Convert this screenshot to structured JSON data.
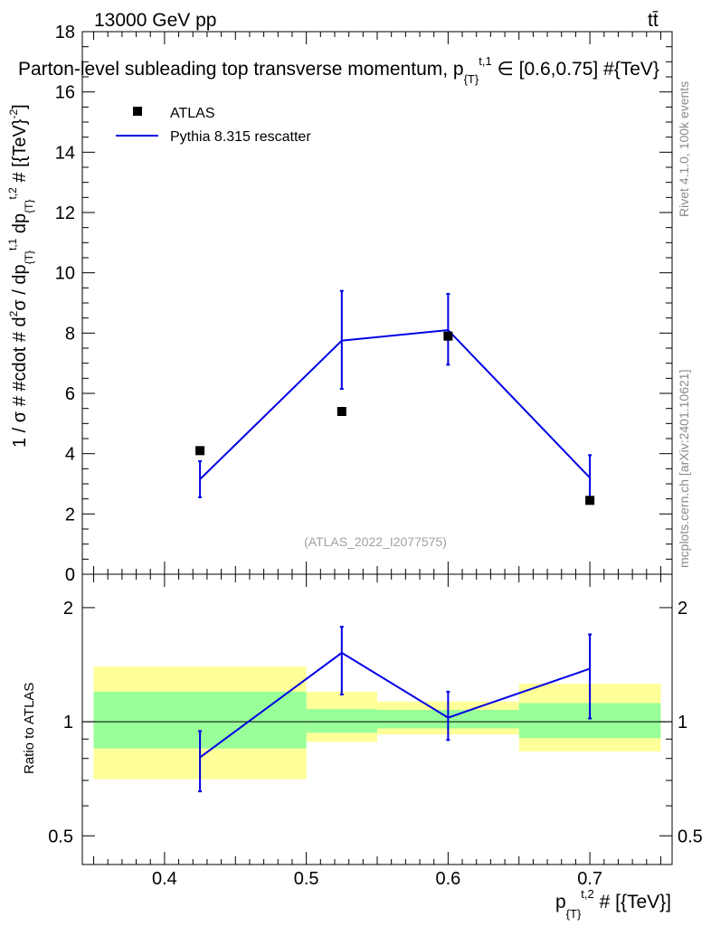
{
  "header": {
    "energy": "13000 GeV pp",
    "process": "tt̄",
    "title": "Parton-level subleading top transverse momentum, p_{T}^{t,1} ∈ [0.6,0.75] #{TeV}",
    "ylabel": "1 / σ # #cdot # d²σ / dp_{T}^{t,1} dp_{T}^{t,2} # [{TeV}^{-2}]",
    "xlabel": "p_{T}^{t,2} # [{TeV}]",
    "ratio_ylabel": "Ratio to ATLAS",
    "analysis_id": "(ATLAS_2022_I2077575)",
    "side_rivet": "Rivet 4.1.0,  100k events",
    "side_mcplots": "mcplots.cern.ch [arXiv:2401.10621]"
  },
  "legend": {
    "atlas": "ATLAS",
    "pythia": "Pythia 8.315 rescatter"
  },
  "colors": {
    "pythia": "#0000e6",
    "band_outer": "#ffff99",
    "band_inner": "#99ff99",
    "data": "#000000"
  },
  "chart_data": [
    {
      "type": "scatter",
      "panel": "main",
      "xlim": [
        0.342,
        0.758
      ],
      "ylim": [
        0,
        18
      ],
      "yticks": [
        0,
        2,
        4,
        6,
        8,
        10,
        12,
        14,
        16,
        18
      ],
      "ytick_labels": [
        "0",
        "2",
        "4",
        "6",
        "8",
        "10",
        "12",
        "14",
        "16",
        "18"
      ],
      "series": [
        {
          "name": "ATLAS",
          "x": [
            0.425,
            0.525,
            0.6,
            0.7
          ],
          "values": [
            4.1,
            5.4,
            7.9,
            2.45
          ]
        },
        {
          "name": "Pythia 8.315 rescatter",
          "x": [
            0.425,
            0.525,
            0.6,
            0.7
          ],
          "values": [
            3.15,
            7.75,
            8.1,
            3.2
          ],
          "err_low": [
            2.55,
            6.15,
            6.95,
            2.5
          ],
          "err_high": [
            3.75,
            9.4,
            9.3,
            3.95
          ]
        }
      ]
    },
    {
      "type": "line",
      "panel": "ratio",
      "ylabel": "Ratio to ATLAS",
      "ylim": [
        0.42,
        2.45
      ],
      "yscale": "log",
      "yticks": [
        0.5,
        1,
        2
      ],
      "ytick_labels": [
        "0.5",
        "1",
        "2"
      ],
      "xticks": [
        0.4,
        0.5,
        0.6,
        0.7
      ],
      "xtick_labels": [
        "0.4",
        "0.5",
        "0.6",
        "0.7"
      ],
      "bins": [
        [
          0.35,
          0.5
        ],
        [
          0.5,
          0.55
        ],
        [
          0.55,
          0.65
        ],
        [
          0.65,
          0.75
        ]
      ],
      "band_outer": [
        [
          0.705,
          1.4
        ],
        [
          0.885,
          1.2
        ],
        [
          0.925,
          1.13
        ],
        [
          0.835,
          1.26
        ]
      ],
      "band_inner": [
        [
          0.85,
          1.2
        ],
        [
          0.935,
          1.08
        ],
        [
          0.96,
          1.075
        ],
        [
          0.905,
          1.12
        ]
      ],
      "series": [
        {
          "name": "Pythia 8.315 rescatter",
          "x": [
            0.425,
            0.525,
            0.6,
            0.7
          ],
          "values": [
            0.805,
            1.52,
            1.025,
            1.38
          ],
          "err_low": [
            0.655,
            1.18,
            0.895,
            1.02
          ],
          "err_high": [
            0.945,
            1.78,
            1.2,
            1.7
          ]
        }
      ]
    }
  ]
}
